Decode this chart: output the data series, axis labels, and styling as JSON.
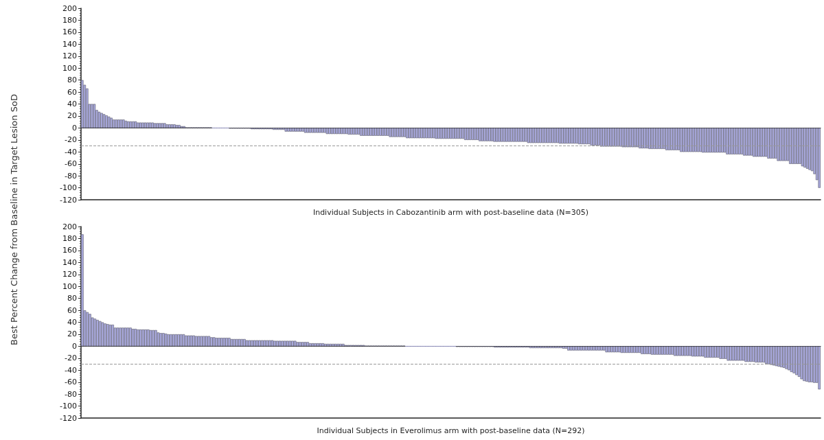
{
  "chart_data": [
    {
      "type": "bar",
      "xlabel": "Individual Subjects in Cabozantinib arm with post-baseline data (N=305)",
      "ylabel": "Best Percent Change from Baseline in Target Lesion SoD",
      "categories": [
        null,
        null,
        null,
        null,
        null,
        null,
        null,
        null,
        null,
        null,
        null,
        null,
        null,
        null,
        null,
        null,
        null,
        null,
        null,
        null,
        null,
        null,
        null,
        null,
        null,
        null,
        null,
        null,
        null,
        null,
        null,
        null,
        null,
        null,
        null,
        null,
        null,
        null,
        null,
        null,
        null,
        null,
        null,
        null,
        null,
        null,
        null,
        null,
        null,
        null,
        null,
        null,
        null,
        null,
        null,
        null,
        null,
        null,
        null,
        null,
        null,
        null,
        null,
        null,
        null,
        null,
        null,
        null,
        null,
        null,
        null,
        null,
        null,
        null,
        null,
        null,
        null,
        null,
        null,
        null,
        null,
        null,
        null,
        null,
        null,
        null,
        null,
        null,
        null,
        null,
        null,
        null,
        null,
        null,
        null,
        null,
        null,
        null,
        null,
        null,
        null,
        null,
        null,
        null,
        null,
        null,
        null,
        null,
        null,
        null,
        null,
        null,
        null,
        null,
        null,
        null,
        null,
        null,
        null,
        null,
        null,
        null,
        null,
        null,
        null,
        null,
        null,
        null,
        null,
        null,
        null,
        null,
        null,
        null,
        null,
        null,
        null,
        null,
        null,
        null,
        null,
        null,
        null,
        null,
        null,
        null,
        null,
        null,
        null,
        null,
        null,
        null,
        null,
        null,
        null,
        null,
        null,
        null,
        null,
        null,
        null,
        null,
        null,
        null,
        null,
        null,
        null,
        null,
        null,
        null,
        null,
        null,
        null,
        null,
        null,
        null,
        null,
        null,
        null,
        null,
        null,
        null,
        null,
        null,
        null,
        null,
        null,
        null,
        null,
        null,
        null,
        null,
        null,
        null,
        null,
        null,
        null,
        null,
        null,
        null,
        null,
        null,
        null,
        null,
        null,
        null,
        null,
        null,
        null,
        null,
        null,
        null,
        null,
        null,
        null,
        null,
        null,
        null,
        null,
        null,
        null,
        null,
        null,
        null,
        null,
        null,
        null,
        null,
        null,
        null,
        null,
        null,
        null,
        null,
        null,
        null,
        null,
        null,
        null,
        null,
        null,
        null,
        null,
        null,
        null,
        null,
        null,
        null,
        null,
        null,
        null,
        null,
        null,
        null,
        null,
        null,
        null,
        null,
        null,
        null,
        null,
        null,
        null,
        null,
        null,
        null,
        null,
        null,
        null,
        null,
        null,
        null,
        null,
        null,
        null,
        null,
        null,
        null,
        null,
        null,
        null,
        null,
        null,
        null,
        null,
        null,
        null,
        null,
        null,
        null,
        null,
        null,
        null,
        null,
        null,
        null,
        null,
        null,
        null,
        null,
        null,
        null,
        null,
        null,
        null
      ],
      "values": [
        80,
        72,
        66,
        40,
        40,
        40,
        30,
        27,
        25,
        23,
        21,
        19,
        17,
        14,
        14,
        14,
        14,
        14,
        12,
        11,
        11,
        11,
        11,
        9,
        9,
        9,
        9,
        9,
        9,
        9,
        8,
        8,
        8,
        8,
        8,
        6,
        6,
        6,
        6,
        5,
        5,
        3,
        3,
        1,
        1,
        1,
        1,
        1,
        1,
        1,
        1,
        1,
        1,
        1,
        0,
        0,
        0,
        0,
        0,
        0,
        0,
        -1,
        -1,
        -1,
        -1,
        -1,
        -1,
        -1,
        -1,
        -1,
        -2,
        -2,
        -2,
        -2,
        -2,
        -2,
        -2,
        -2,
        -2,
        -3,
        -3,
        -3,
        -3,
        -3,
        -6,
        -6,
        -6,
        -6,
        -6,
        -6,
        -6,
        -6,
        -8,
        -8,
        -8,
        -8,
        -8,
        -8,
        -8,
        -8,
        -8,
        -10,
        -10,
        -10,
        -10,
        -10,
        -10,
        -10,
        -10,
        -10,
        -11,
        -11,
        -11,
        -11,
        -11,
        -13,
        -13,
        -13,
        -13,
        -13,
        -13,
        -13,
        -13,
        -13,
        -13,
        -13,
        -13,
        -15,
        -15,
        -15,
        -15,
        -15,
        -15,
        -15,
        -17,
        -17,
        -17,
        -17,
        -17,
        -17,
        -17,
        -17,
        -17,
        -17,
        -17,
        -17,
        -18,
        -18,
        -18,
        -18,
        -18,
        -18,
        -18,
        -18,
        -18,
        -18,
        -18,
        -18,
        -20,
        -20,
        -20,
        -20,
        -20,
        -20,
        -22,
        -22,
        -22,
        -22,
        -22,
        -22,
        -23,
        -23,
        -23,
        -23,
        -23,
        -23,
        -23,
        -23,
        -23,
        -23,
        -23,
        -23,
        -23,
        -23,
        -25,
        -25,
        -25,
        -25,
        -25,
        -25,
        -25,
        -25,
        -25,
        -25,
        -25,
        -25,
        -25,
        -26,
        -26,
        -26,
        -26,
        -26,
        -26,
        -26,
        -26,
        -27,
        -27,
        -27,
        -27,
        -27,
        -29,
        -29,
        -29,
        -29,
        -31,
        -31,
        -31,
        -31,
        -31,
        -31,
        -31,
        -31,
        -31,
        -32,
        -32,
        -32,
        -32,
        -32,
        -32,
        -32,
        -34,
        -34,
        -34,
        -34,
        -35,
        -35,
        -35,
        -35,
        -35,
        -35,
        -35,
        -37,
        -37,
        -37,
        -37,
        -37,
        -37,
        -40,
        -40,
        -40,
        -40,
        -40,
        -40,
        -40,
        -40,
        -40,
        -41,
        -41,
        -41,
        -41,
        -41,
        -41,
        -41,
        -41,
        -41,
        -41,
        -44,
        -44,
        -44,
        -44,
        -44,
        -44,
        -44,
        -46,
        -46,
        -46,
        -46,
        -48,
        -48,
        -48,
        -48,
        -48,
        -48,
        -51,
        -51,
        -51,
        -51,
        -55,
        -55,
        -55,
        -55,
        -55,
        -60,
        -60,
        -60,
        -60,
        -60,
        -64,
        -66,
        -68,
        -70,
        -72,
        -77,
        -87,
        -100
      ],
      "color": "#a9a9dd",
      "ylim": [
        -120,
        200
      ],
      "yticks": [
        -120,
        -100,
        -80,
        -60,
        -40,
        -20,
        0,
        20,
        40,
        60,
        80,
        100,
        120,
        140,
        160,
        180,
        200
      ],
      "ref_lines": [
        {
          "axis": "y",
          "value": -30,
          "color": "#999999",
          "line_style": "dashed"
        }
      ]
    },
    {
      "type": "bar",
      "xlabel": "Individual Subjects in Everolimus arm with post-baseline data (N=292)",
      "categories": [
        null,
        null,
        null,
        null,
        null,
        null,
        null,
        null,
        null,
        null,
        null,
        null,
        null,
        null,
        null,
        null,
        null,
        null,
        null,
        null,
        null,
        null,
        null,
        null,
        null,
        null,
        null,
        null,
        null,
        null,
        null,
        null,
        null,
        null,
        null,
        null,
        null,
        null,
        null,
        null,
        null,
        null,
        null,
        null,
        null,
        null,
        null,
        null,
        null,
        null,
        null,
        null,
        null,
        null,
        null,
        null,
        null,
        null,
        null,
        null,
        null,
        null,
        null,
        null,
        null,
        null,
        null,
        null,
        null,
        null,
        null,
        null,
        null,
        null,
        null,
        null,
        null,
        null,
        null,
        null,
        null,
        null,
        null,
        null,
        null,
        null,
        null,
        null,
        null,
        null,
        null,
        null,
        null,
        null,
        null,
        null,
        null,
        null,
        null,
        null,
        null,
        null,
        null,
        null,
        null,
        null,
        null,
        null,
        null,
        null,
        null,
        null,
        null,
        null,
        null,
        null,
        null,
        null,
        null,
        null,
        null,
        null,
        null,
        null,
        null,
        null,
        null,
        null,
        null,
        null,
        null,
        null,
        null,
        null,
        null,
        null,
        null,
        null,
        null,
        null,
        null,
        null,
        null,
        null,
        null,
        null,
        null,
        null,
        null,
        null,
        null,
        null,
        null,
        null,
        null,
        null,
        null,
        null,
        null,
        null,
        null,
        null,
        null,
        null,
        null,
        null,
        null,
        null,
        null,
        null,
        null,
        null,
        null,
        null,
        null,
        null,
        null,
        null,
        null,
        null,
        null,
        null,
        null,
        null,
        null,
        null,
        null,
        null,
        null,
        null,
        null,
        null,
        null,
        null,
        null,
        null,
        null,
        null,
        null,
        null,
        null,
        null,
        null,
        null,
        null,
        null,
        null,
        null,
        null,
        null,
        null,
        null,
        null,
        null,
        null,
        null,
        null,
        null,
        null,
        null,
        null,
        null,
        null,
        null,
        null,
        null,
        null,
        null,
        null,
        null,
        null,
        null,
        null,
        null,
        null,
        null,
        null,
        null,
        null,
        null,
        null,
        null,
        null,
        null,
        null,
        null,
        null,
        null,
        null,
        null,
        null,
        null,
        null,
        null,
        null,
        null,
        null,
        null,
        null,
        null,
        null,
        null,
        null,
        null,
        null,
        null,
        null,
        null,
        null,
        null,
        null,
        null,
        null,
        null,
        null,
        null,
        null,
        null,
        null,
        null,
        null,
        null,
        null,
        null,
        null,
        null,
        null,
        null,
        null,
        null,
        null,
        null
      ],
      "values": [
        187,
        60,
        57,
        54,
        48,
        46,
        44,
        42,
        40,
        38,
        37,
        36,
        36,
        31,
        31,
        31,
        31,
        31,
        31,
        31,
        29,
        29,
        28,
        28,
        28,
        28,
        28,
        27,
        27,
        27,
        23,
        22,
        22,
        21,
        20,
        20,
        20,
        20,
        20,
        20,
        20,
        18,
        18,
        18,
        18,
        17,
        17,
        17,
        17,
        17,
        17,
        15,
        15,
        14,
        14,
        14,
        14,
        14,
        14,
        12,
        12,
        12,
        12,
        12,
        12,
        10,
        10,
        10,
        10,
        10,
        10,
        10,
        10,
        10,
        10,
        10,
        9,
        9,
        9,
        9,
        9,
        9,
        9,
        9,
        9,
        7,
        7,
        7,
        7,
        7,
        5,
        5,
        5,
        5,
        5,
        5,
        4,
        4,
        4,
        4,
        4,
        4,
        4,
        4,
        2,
        2,
        2,
        2,
        2,
        2,
        2,
        2,
        1,
        1,
        1,
        1,
        1,
        1,
        1,
        1,
        1,
        1,
        1,
        1,
        1,
        1,
        1,
        1,
        0,
        0,
        0,
        0,
        0,
        0,
        0,
        0,
        0,
        0,
        0,
        0,
        0,
        0,
        0,
        0,
        0,
        0,
        0,
        0,
        -1,
        -1,
        -1,
        -1,
        -1,
        -1,
        -1,
        -1,
        -1,
        -1,
        -1,
        -1,
        -1,
        -1,
        -1,
        -2,
        -2,
        -2,
        -2,
        -2,
        -2,
        -2,
        -2,
        -2,
        -2,
        -2,
        -2,
        -2,
        -2,
        -3,
        -3,
        -3,
        -3,
        -3,
        -3,
        -3,
        -3,
        -3,
        -3,
        -3,
        -3,
        -3,
        -4,
        -4,
        -7,
        -7,
        -7,
        -7,
        -7,
        -7,
        -7,
        -7,
        -7,
        -7,
        -7,
        -7,
        -7,
        -7,
        -7,
        -10,
        -10,
        -10,
        -10,
        -10,
        -10,
        -11,
        -11,
        -11,
        -11,
        -11,
        -11,
        -11,
        -11,
        -13,
        -13,
        -13,
        -13,
        -14,
        -14,
        -14,
        -14,
        -14,
        -14,
        -14,
        -14,
        -14,
        -16,
        -16,
        -16,
        -16,
        -16,
        -16,
        -16,
        -17,
        -17,
        -17,
        -17,
        -17,
        -19,
        -19,
        -19,
        -19,
        -19,
        -19,
        -21,
        -21,
        -21,
        -24,
        -24,
        -24,
        -24,
        -24,
        -24,
        -24,
        -26,
        -26,
        -26,
        -26,
        -27,
        -27,
        -27,
        -27,
        -29,
        -30,
        -31,
        -32,
        -33,
        -34,
        -35,
        -36,
        -38,
        -40,
        -43,
        -45,
        -48,
        -51,
        -55,
        -58,
        -59,
        -60,
        -60,
        -61,
        -61,
        -72
      ],
      "color": "#a9a9dd",
      "ylim": [
        -120,
        200
      ],
      "yticks": [
        -120,
        -100,
        -80,
        -60,
        -40,
        -20,
        0,
        20,
        40,
        60,
        80,
        100,
        120,
        140,
        160,
        180,
        200
      ],
      "ref_lines": [
        {
          "axis": "y",
          "value": -30,
          "color": "#999999",
          "line_style": "dashed"
        }
      ]
    }
  ]
}
